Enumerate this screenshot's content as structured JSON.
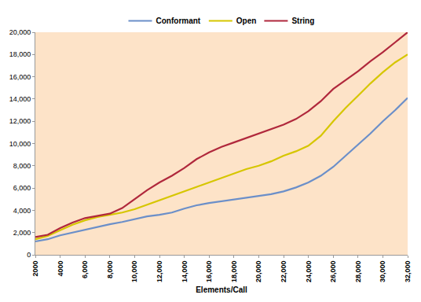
{
  "chart_data": {
    "type": "line",
    "x_label": "Elements/Call",
    "x": [
      2000,
      3000,
      4000,
      5000,
      6000,
      7000,
      8000,
      9000,
      10000,
      11000,
      12000,
      13000,
      14000,
      15000,
      16000,
      17000,
      18000,
      19000,
      20000,
      21000,
      22000,
      23000,
      24000,
      25000,
      26000,
      27000,
      28000,
      29000,
      30000,
      31000,
      32000
    ],
    "series": [
      {
        "name": "Conformant",
        "color": "#6b8fc9",
        "values": [
          1200,
          1400,
          1750,
          2000,
          2300,
          2550,
          2750,
          2950,
          3200,
          3450,
          3600,
          3800,
          4150,
          4450,
          4650,
          4800,
          4950,
          5100,
          5300,
          5450,
          5700,
          6050,
          6500,
          7100,
          7900,
          8900,
          9900,
          10900,
          12000,
          13000,
          14100
        ]
      },
      {
        "name": "Open",
        "color": "#d6c600",
        "values": [
          1400,
          1700,
          2200,
          2700,
          3100,
          3400,
          3600,
          3800,
          4100,
          4500,
          4900,
          5300,
          5700,
          6100,
          6500,
          6900,
          7300,
          7700,
          8000,
          8400,
          8900,
          9300,
          9800,
          10700,
          12000,
          13200,
          14300,
          15400,
          16400,
          17300,
          18000
        ]
      },
      {
        "name": "String",
        "color": "#b0283c",
        "values": [
          1600,
          1800,
          2400,
          2900,
          3300,
          3500,
          3700,
          4200,
          5000,
          5800,
          6500,
          7100,
          7800,
          8600,
          9200,
          9700,
          10100,
          10500,
          10900,
          11300,
          11700,
          12200,
          12900,
          13800,
          14900,
          15700,
          16500,
          17400,
          18200,
          19100,
          20000
        ]
      }
    ],
    "xlim": [
      2000,
      32000
    ],
    "xticks": [
      2000,
      4000,
      {
        "value": 6000,
        "label": "6,000"
      },
      {
        "value": 8000,
        "label": "8,000"
      },
      {
        "value": 10000,
        "label": "10,000"
      },
      {
        "value": 12000,
        "label": "12,000"
      },
      {
        "value": 14000,
        "label": "14,000"
      },
      {
        "value": 16000,
        "label": "16,000"
      },
      {
        "value": 18000,
        "label": "18,000"
      },
      {
        "value": 20000,
        "label": "20,000"
      },
      {
        "value": 22000,
        "label": "22,000"
      },
      {
        "value": 24000,
        "label": "24,000"
      },
      {
        "value": 26000,
        "label": "26,000"
      },
      {
        "value": 28000,
        "label": "28,000"
      },
      {
        "value": 30000,
        "label": "30,000"
      },
      {
        "value": 32000,
        "label": "32,000"
      }
    ],
    "ylim": [
      0,
      20000
    ],
    "yticks": [
      0,
      {
        "value": 2000,
        "label": "2,000"
      },
      {
        "value": 4000,
        "label": "4,000"
      },
      {
        "value": 6000,
        "label": "6,000"
      },
      {
        "value": 8000,
        "label": "8,000"
      },
      {
        "value": 10000,
        "label": "10,000"
      },
      {
        "value": 12000,
        "label": "12,000"
      },
      {
        "value": 14000,
        "label": "14,000"
      },
      {
        "value": 16000,
        "label": "16,000"
      },
      {
        "value": 18000,
        "label": "18,000"
      },
      {
        "value": 20000,
        "label": "20,000"
      }
    ],
    "grid": false,
    "legend": "top"
  }
}
